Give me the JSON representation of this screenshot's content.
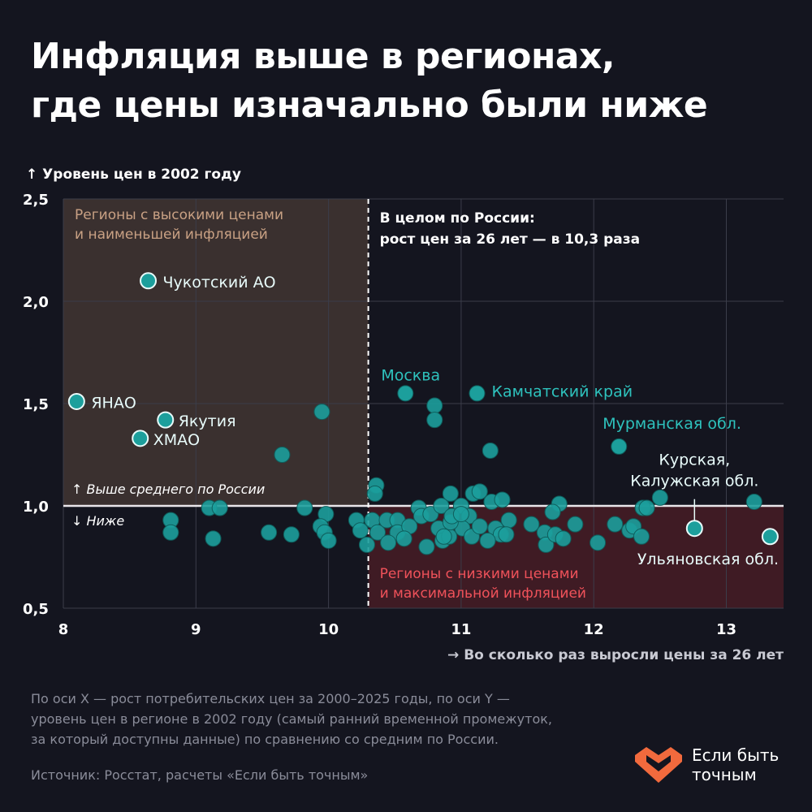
{
  "title": [
    "Инфляция выше в регионах,",
    "где цены изначально были ниже"
  ],
  "colors": {
    "background": "#14151f",
    "point": "#1c9f9c",
    "point_stroke": "#0f5e5c",
    "highlight_stroke": "#e8fbfa",
    "high_quadrant": "#3a302f",
    "low_quadrant": "#3f1b24",
    "high_label": "#c9a184",
    "low_label": "#f0525a",
    "label": "#2ec2bd",
    "logo": "#f26a3d"
  },
  "chart_data": {
    "type": "scatter",
    "ylabel": "↑ Уровень цен в 2002 году",
    "xlabel": "→ Во сколько раз выросли цены за 26 лет",
    "xlim": [
      8,
      13.43
    ],
    "ylim": [
      0.5,
      2.5
    ],
    "grid": true,
    "x_ticks": [
      8,
      9,
      10,
      11,
      12,
      13
    ],
    "x_tick_labels": [
      "8",
      "9",
      "10",
      "11",
      "12",
      "13"
    ],
    "y_ticks": [
      2.5,
      2.0,
      1.5,
      1.0,
      0.5
    ],
    "y_tick_labels": [
      "2,5",
      "2,0",
      "1,5",
      "1,0",
      "0,5"
    ],
    "reference_x": 10.3,
    "reference_y": 1.0,
    "reference_x_note": [
      "В целом по России:",
      "рост цен за 26 лет — в 10,3 раза"
    ],
    "above_note": "↑ Выше среднего по России",
    "below_note": "↓ Ниже",
    "quadrant_high_label": [
      "Регионы с высокими ценами",
      "и наименьшей инфляцией"
    ],
    "quadrant_low_label": [
      "Регионы с низкими ценами",
      "и максимальной инфляцией"
    ],
    "labeled_points": [
      {
        "label": "Чукотский АО",
        "x": 8.64,
        "y": 2.1,
        "highlight": true
      },
      {
        "label": "ЯНАО",
        "x": 8.1,
        "y": 1.51,
        "highlight": true
      },
      {
        "label": "Якутия",
        "x": 8.77,
        "y": 1.42,
        "highlight": true
      },
      {
        "label": "ХМАО",
        "x": 8.58,
        "y": 1.33,
        "highlight": true
      },
      {
        "label": "Москва",
        "x": 10.58,
        "y": 1.55,
        "highlight": false
      },
      {
        "label": "Камчатский край",
        "x": 11.12,
        "y": 1.55,
        "highlight": false
      },
      {
        "label": "Мурманская обл.",
        "x": 12.19,
        "y": 1.29,
        "highlight": false
      },
      {
        "label": "Курская, Калужская обл.",
        "x": 12.76,
        "y": 0.89,
        "highlight": true
      },
      {
        "label": "Ульяновская обл.",
        "x": 13.33,
        "y": 0.85,
        "highlight": true
      }
    ],
    "points": [
      [
        9.95,
        1.46
      ],
      [
        9.65,
        1.25
      ],
      [
        10.8,
        1.49
      ],
      [
        10.8,
        1.42
      ],
      [
        11.22,
        1.27
      ],
      [
        13.21,
        1.02
      ],
      [
        12.5,
        1.04
      ],
      [
        12.37,
        0.99
      ],
      [
        12.4,
        0.99
      ],
      [
        8.81,
        0.93
      ],
      [
        8.81,
        0.87
      ],
      [
        9.1,
        0.99
      ],
      [
        9.18,
        0.99
      ],
      [
        9.13,
        0.84
      ],
      [
        9.55,
        0.87
      ],
      [
        9.72,
        0.86
      ],
      [
        9.82,
        0.99
      ],
      [
        9.98,
        0.96
      ],
      [
        9.94,
        0.9
      ],
      [
        9.97,
        0.87
      ],
      [
        10.0,
        0.83
      ],
      [
        10.21,
        0.93
      ],
      [
        10.24,
        0.88
      ],
      [
        10.29,
        0.81
      ],
      [
        10.36,
        1.1
      ],
      [
        10.35,
        1.06
      ],
      [
        10.33,
        0.93
      ],
      [
        10.37,
        0.87
      ],
      [
        10.44,
        0.93
      ],
      [
        10.52,
        0.93
      ],
      [
        10.52,
        0.87
      ],
      [
        10.61,
        0.9
      ],
      [
        10.68,
        0.99
      ],
      [
        10.7,
        0.95
      ],
      [
        10.77,
        0.96
      ],
      [
        10.83,
        0.89
      ],
      [
        10.86,
        0.83
      ],
      [
        10.91,
        0.85
      ],
      [
        10.92,
        1.06
      ],
      [
        10.85,
        1.0
      ],
      [
        11.0,
        1.0
      ],
      [
        11.06,
        0.95
      ],
      [
        11.01,
        0.89
      ],
      [
        11.08,
        0.85
      ],
      [
        10.92,
        0.92
      ],
      [
        10.93,
        0.95
      ],
      [
        10.87,
        0.85
      ],
      [
        10.57,
        0.84
      ],
      [
        10.45,
        0.82
      ],
      [
        11.09,
        1.06
      ],
      [
        11.14,
        1.07
      ],
      [
        11.23,
        1.02
      ],
      [
        11.31,
        1.03
      ],
      [
        11.14,
        0.9
      ],
      [
        11.26,
        0.89
      ],
      [
        11.3,
        0.86
      ],
      [
        11.36,
        0.93
      ],
      [
        11.34,
        0.86
      ],
      [
        11.53,
        0.91
      ],
      [
        11.63,
        0.87
      ],
      [
        11.64,
        0.81
      ],
      [
        11.71,
        0.86
      ],
      [
        11.74,
        1.01
      ],
      [
        11.69,
        0.97
      ],
      [
        11.77,
        0.84
      ],
      [
        11.86,
        0.91
      ],
      [
        12.03,
        0.82
      ],
      [
        12.16,
        0.91
      ],
      [
        12.27,
        0.88
      ],
      [
        12.3,
        0.9
      ],
      [
        12.36,
        0.85
      ],
      [
        11.0,
        0.96
      ],
      [
        10.74,
        0.8
      ],
      [
        11.2,
        0.83
      ]
    ]
  },
  "footnote": [
    "По оси X — рост потребительских цен за 2000–2025 годы, по оси Y —",
    "уровень цен в регионе в 2002 году (самый ранний временной промежуток,",
    "за который доступны данные) по сравнению со средним по России."
  ],
  "source": "Источник: Росстат, расчеты «Если быть точным»",
  "logo": {
    "text": [
      "Если быть",
      "точным"
    ],
    "icon": "heart-logo-icon"
  }
}
